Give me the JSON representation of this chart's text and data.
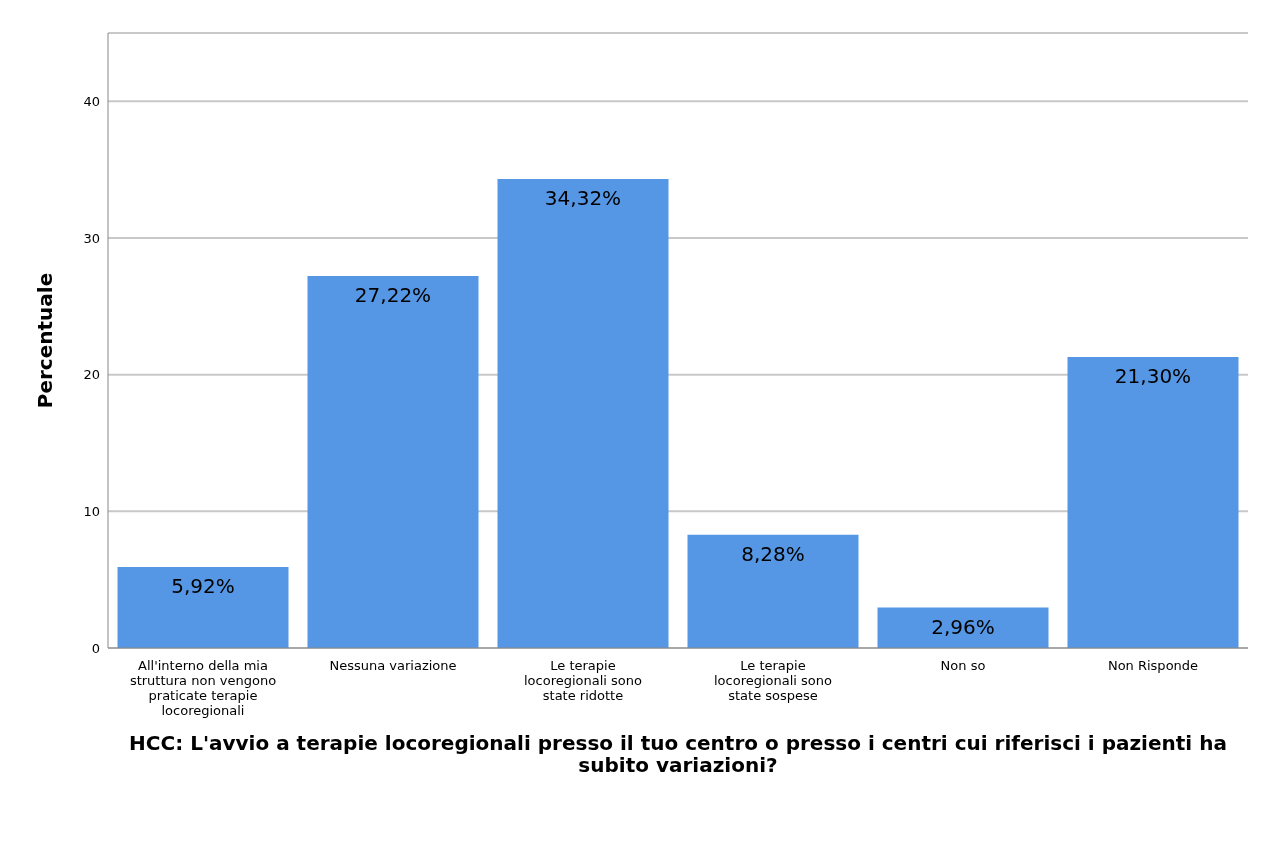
{
  "chart_data": {
    "type": "bar",
    "xlabel": "HCC: L'avvio a terapie locoregionali presso il tuo centro o presso i centri cui riferisci i pazienti ha subito variazioni?",
    "ylabel": "Percentuale",
    "categories": [
      "All'interno della mia struttura non vengono praticate terapie locoregionali",
      "Nessuna variazione",
      "Le terapie locoregionali sono state ridotte",
      "Le terapie locoregionali sono state sospese",
      "Non so",
      "Non Risponde"
    ],
    "values": [
      5.92,
      27.22,
      34.32,
      8.28,
      2.96,
      21.3
    ],
    "value_labels": [
      "5,92%",
      "27,22%",
      "34,32%",
      "8,28%",
      "2,96%",
      "21,30%"
    ],
    "color": "#5597e5",
    "ylim": [
      0,
      45
    ],
    "yticks": [
      0,
      10,
      20,
      30,
      40
    ],
    "grid": "y",
    "legend": false
  }
}
